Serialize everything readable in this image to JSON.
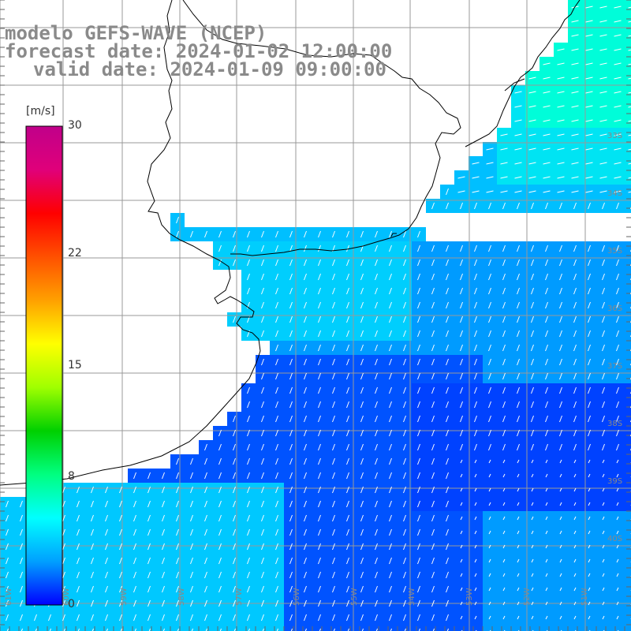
{
  "title": {
    "line1": "modelo GEFS-WAVE (NCEP)",
    "line2": "forecast date: 2024-01-02 12:00:00",
    "line3": "valid date: 2024-01-09 09:00:00"
  },
  "colorbar": {
    "unit": "[m/s]",
    "min": 0,
    "max": 30,
    "ticks": [
      "30",
      "22",
      "15",
      "8",
      "0"
    ],
    "tick_values": [
      30,
      22,
      15,
      8,
      0
    ],
    "colors": [
      "#0000ff",
      "#00a0ff",
      "#00ffff",
      "#00ff80",
      "#00d000",
      "#a0ff00",
      "#ffff00",
      "#ffa000",
      "#ff5000",
      "#ff0000",
      "#e0007a",
      "#c0008a"
    ]
  },
  "map": {
    "variable": "wind speed with direction arrows",
    "lon_labels": [
      "61W",
      "60W",
      "59W",
      "58W",
      "57W",
      "56W",
      "55W",
      "54W",
      "53W",
      "52W",
      "51W"
    ],
    "lat_labels": [
      "33S",
      "34S",
      "35S",
      "36S",
      "37S",
      "38S",
      "39S",
      "40S"
    ],
    "land_color": "#ffffff",
    "grid_color": "#999999",
    "coast_color": "#000000",
    "arrow_color": "#ffffff"
  }
}
